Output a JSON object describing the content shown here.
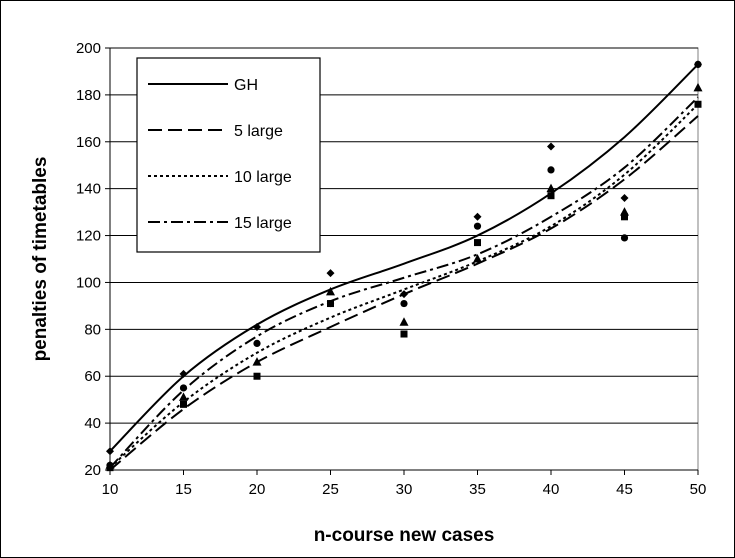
{
  "chart_data": {
    "type": "scatter",
    "title": "",
    "xlabel": "n-course new cases",
    "ylabel": "penalties of timetables",
    "xlim": [
      10,
      50
    ],
    "ylim": [
      20,
      200
    ],
    "x_ticks": [
      "10",
      "15",
      "20",
      "25",
      "30",
      "35",
      "40",
      "45",
      "50"
    ],
    "y_ticks": [
      "20",
      "40",
      "60",
      "80",
      "100",
      "120",
      "140",
      "160",
      "180",
      "200"
    ],
    "grid": "horizontal",
    "legend_placement": "top-left",
    "series": [
      {
        "name": "GH",
        "line_style": "solid",
        "marker": "diamond",
        "x": [
          10,
          15,
          20,
          25,
          30,
          35,
          40,
          45,
          50
        ],
        "points": [
          28,
          61,
          81,
          104,
          95,
          128,
          158,
          136,
          193
        ],
        "trend": [
          28,
          60,
          82,
          97,
          108,
          120,
          138,
          162,
          193
        ]
      },
      {
        "name": "5 large",
        "line_style": "dashed",
        "marker": "square",
        "x": [
          10,
          15,
          20,
          25,
          30,
          35,
          40,
          45,
          50
        ],
        "points": [
          21,
          48,
          60,
          91,
          78,
          117,
          137,
          128,
          176
        ],
        "trend": [
          20,
          46,
          66,
          81,
          95,
          108,
          123,
          144,
          171
        ]
      },
      {
        "name": "10 large",
        "line_style": "dotted",
        "marker": "circle",
        "x": [
          10,
          15,
          20,
          25,
          30,
          35,
          40,
          45,
          50
        ],
        "points": [
          22,
          55,
          74,
          91,
          91,
          124,
          148,
          119,
          193
        ],
        "trend": [
          21,
          49,
          70,
          85,
          97,
          109,
          124,
          146,
          176
        ]
      },
      {
        "name": "15 large",
        "line_style": "dashdot",
        "marker": "triangle",
        "x": [
          10,
          15,
          20,
          25,
          30,
          35,
          40,
          45,
          50
        ],
        "points": [
          22,
          51,
          66,
          96,
          83,
          110,
          140,
          130,
          183
        ],
        "trend": [
          21,
          54,
          77,
          92,
          102,
          112,
          128,
          149,
          179
        ]
      }
    ]
  }
}
